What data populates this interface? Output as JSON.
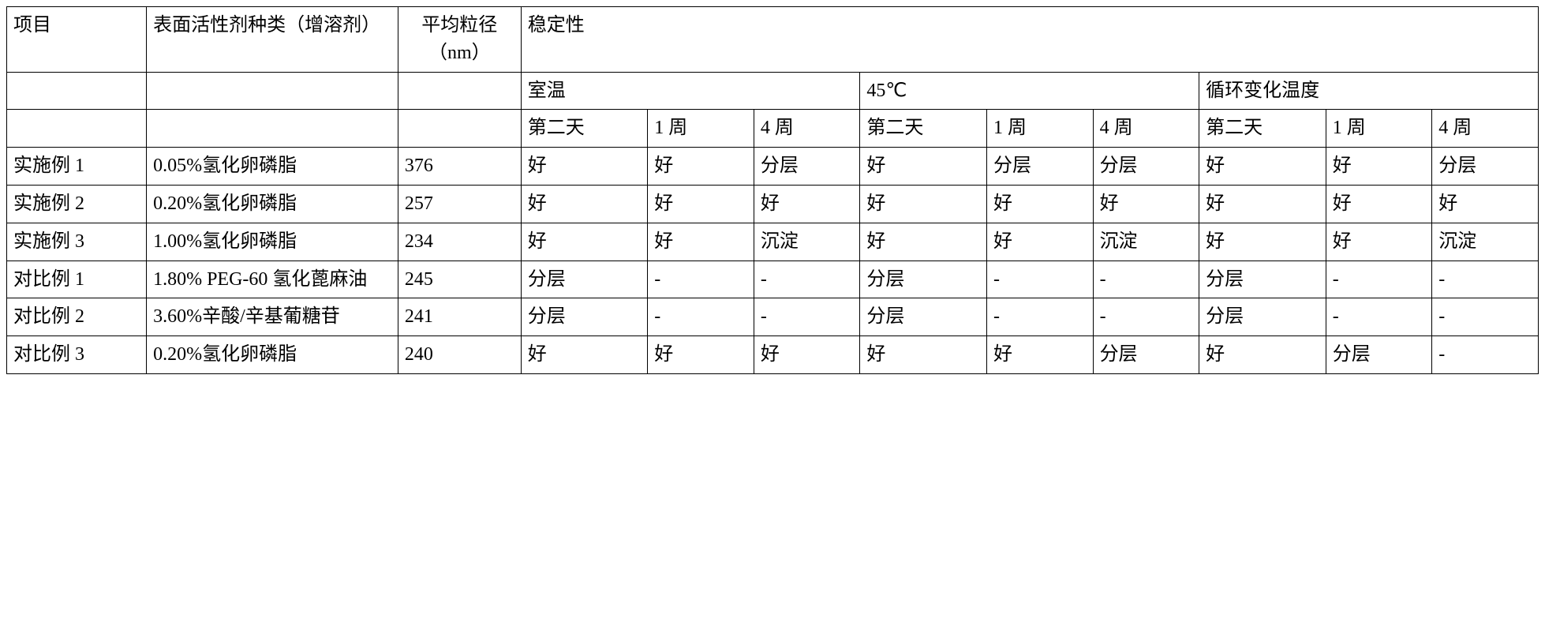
{
  "table": {
    "type": "table",
    "border_color": "#000000",
    "background_color": "#ffffff",
    "text_color": "#000000",
    "font_size_pt": 18,
    "header": {
      "project": "项目",
      "surfactant": "表面活性剂种类（增溶剂）",
      "diameter": "平均粒径（nm）",
      "stability": "稳定性",
      "conditions": {
        "room_temp": "室温",
        "45c": "45℃",
        "cycle": "循环变化温度"
      },
      "timepoints": {
        "day2": "第二天",
        "week1": "1 周",
        "week4": "4 周"
      }
    },
    "rows": [
      {
        "project": "实施例 1",
        "surfactant": "0.05%氢化卵磷脂",
        "diameter": "376",
        "room_temp": {
          "day2": "好",
          "week1": "好",
          "week4": "分层"
        },
        "45c": {
          "day2": "好",
          "week1": "分层",
          "week4": "分层"
        },
        "cycle": {
          "day2": "好",
          "week1": "好",
          "week4": "分层"
        }
      },
      {
        "project": "实施例 2",
        "surfactant": "0.20%氢化卵磷脂",
        "diameter": "257",
        "room_temp": {
          "day2": "好",
          "week1": "好",
          "week4": "好"
        },
        "45c": {
          "day2": "好",
          "week1": "好",
          "week4": "好"
        },
        "cycle": {
          "day2": "好",
          "week1": "好",
          "week4": "好"
        }
      },
      {
        "project": "实施例 3",
        "surfactant": "1.00%氢化卵磷脂",
        "diameter": "234",
        "room_temp": {
          "day2": "好",
          "week1": "好",
          "week4": "沉淀"
        },
        "45c": {
          "day2": "好",
          "week1": "好",
          "week4": "沉淀"
        },
        "cycle": {
          "day2": "好",
          "week1": "好",
          "week4": "沉淀"
        }
      },
      {
        "project": "对比例 1",
        "surfactant": "1.80% PEG-60 氢化蓖麻油",
        "diameter": "245",
        "room_temp": {
          "day2": "分层",
          "week1": "-",
          "week4": "-"
        },
        "45c": {
          "day2": "分层",
          "week1": "-",
          "week4": "-"
        },
        "cycle": {
          "day2": "分层",
          "week1": "-",
          "week4": "-"
        }
      },
      {
        "project": "对比例 2",
        "surfactant": "3.60%辛酸/辛基葡糖苷",
        "diameter": "241",
        "room_temp": {
          "day2": "分层",
          "week1": "-",
          "week4": "-"
        },
        "45c": {
          "day2": "分层",
          "week1": "-",
          "week4": "-"
        },
        "cycle": {
          "day2": "分层",
          "week1": "-",
          "week4": "-"
        }
      },
      {
        "project": "对比例 3",
        "surfactant": "0.20%氢化卵磷脂",
        "diameter": "240",
        "room_temp": {
          "day2": "好",
          "week1": "好",
          "week4": "好"
        },
        "45c": {
          "day2": "好",
          "week1": "好",
          "week4": "分层"
        },
        "cycle": {
          "day2": "好",
          "week1": "分层",
          "week4": "-"
        }
      }
    ]
  }
}
